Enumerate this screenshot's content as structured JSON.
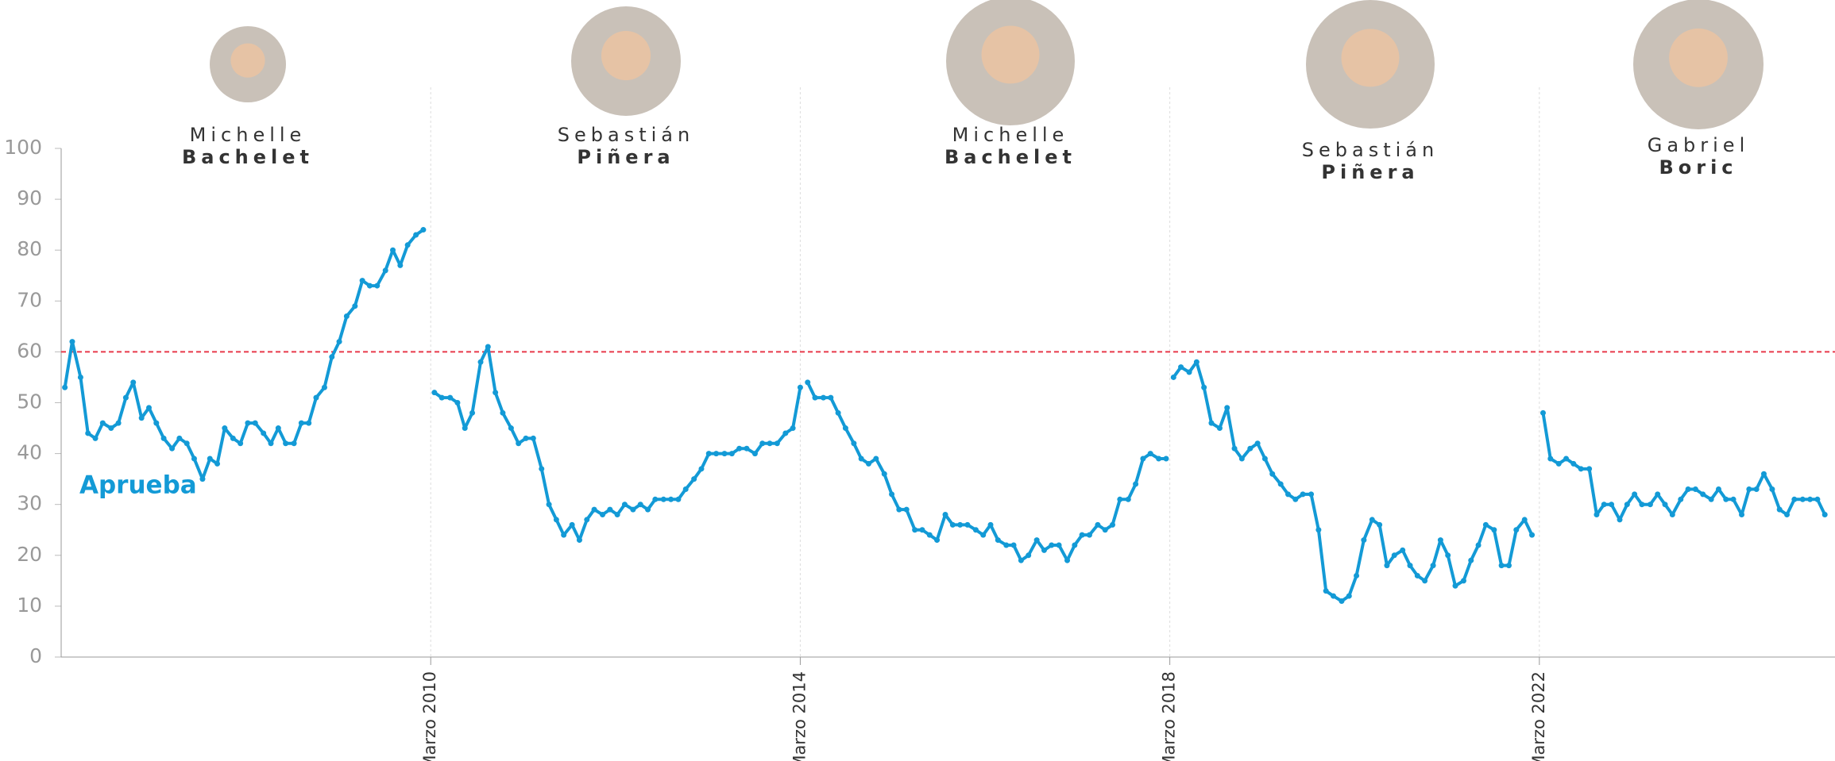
{
  "chart_data": {
    "type": "line",
    "presidents": [
      {
        "first": "Michelle",
        "last": "Bachelet"
      },
      {
        "first": "Sebastián",
        "last": "Piñera"
      },
      {
        "first": "Michelle",
        "last": "Bachelet"
      },
      {
        "first": "Sebastián",
        "last": "Piñera"
      },
      {
        "first": "Gabriel",
        "last": "Boric"
      }
    ],
    "xlim": [
      2006.17,
      2025.37
    ],
    "ylim": [
      0,
      100
    ],
    "yticks": [
      0,
      10,
      20,
      30,
      40,
      50,
      60,
      70,
      80,
      90,
      100
    ],
    "xticks": [
      {
        "value": 2010.17,
        "label": "Marzo 2010"
      },
      {
        "value": 2014.17,
        "label": "Marzo 2014"
      },
      {
        "value": 2018.17,
        "label": "Marzo 2018"
      },
      {
        "value": 2022.17,
        "label": "Marzo 2022"
      }
    ],
    "reference_line": {
      "value": 60,
      "color": "#e8394a"
    },
    "series": [
      {
        "name": "Aprueba",
        "color": "#139ad6",
        "x": [
          2006.21,
          2006.29,
          2006.38,
          2006.46,
          2006.54,
          2006.62,
          2006.71,
          2006.79,
          2006.87,
          2006.95,
          2007.04,
          2007.12,
          2007.2,
          2007.28,
          2007.37,
          2007.45,
          2007.53,
          2007.61,
          2007.7,
          2007.78,
          2007.86,
          2007.94,
          2008.03,
          2008.11,
          2008.19,
          2008.27,
          2008.36,
          2008.44,
          2008.52,
          2008.6,
          2008.69,
          2008.77,
          2008.85,
          2008.93,
          2009.02,
          2009.1,
          2009.18,
          2009.26,
          2009.35,
          2009.43,
          2009.51,
          2009.59,
          2009.68,
          2009.76,
          2009.84,
          2009.92,
          2010.01,
          2010.09,
          null,
          2010.21,
          2010.29,
          2010.38,
          2010.46,
          2010.54,
          2010.62,
          2010.71,
          2010.79,
          2010.87,
          2010.95,
          2011.04,
          2011.12,
          2011.2,
          2011.28,
          2011.37,
          2011.45,
          2011.53,
          2011.61,
          2011.7,
          2011.78,
          2011.86,
          2011.94,
          2012.03,
          2012.11,
          2012.19,
          2012.27,
          2012.36,
          2012.44,
          2012.52,
          2012.6,
          2012.69,
          2012.77,
          2012.85,
          2012.93,
          2013.02,
          2013.1,
          2013.18,
          2013.26,
          2013.35,
          2013.43,
          2013.51,
          2013.59,
          2013.68,
          2013.76,
          2013.84,
          2013.92,
          2014.01,
          2014.09,
          2014.17,
          null,
          2014.25,
          2014.33,
          2014.42,
          2014.5,
          2014.58,
          2014.66,
          2014.75,
          2014.83,
          2014.91,
          2014.99,
          2015.08,
          2015.16,
          2015.24,
          2015.32,
          2015.41,
          2015.49,
          2015.57,
          2015.65,
          2015.74,
          2015.82,
          2015.9,
          2015.98,
          2016.07,
          2016.15,
          2016.23,
          2016.31,
          2016.4,
          2016.48,
          2016.56,
          2016.64,
          2016.73,
          2016.81,
          2016.89,
          2016.97,
          2017.06,
          2017.14,
          2017.22,
          2017.3,
          2017.39,
          2017.47,
          2017.55,
          2017.63,
          2017.72,
          2017.8,
          2017.88,
          2017.96,
          2018.05,
          2018.13,
          null,
          2018.21,
          2018.29,
          2018.38,
          2018.46,
          2018.54,
          2018.62,
          2018.71,
          2018.79,
          2018.87,
          2018.95,
          2019.04,
          2019.12,
          2019.2,
          2019.28,
          2019.37,
          2019.45,
          2019.53,
          2019.61,
          2019.7,
          2019.78,
          2019.86,
          2019.94,
          2020.03,
          2020.11,
          2020.19,
          2020.27,
          2020.36,
          2020.44,
          2020.52,
          2020.6,
          2020.69,
          2020.77,
          2020.85,
          2020.93,
          2021.02,
          2021.1,
          2021.18,
          2021.26,
          2021.35,
          2021.43,
          2021.51,
          2021.59,
          2021.68,
          2021.76,
          2021.84,
          2021.92,
          2022.01,
          2022.09,
          null,
          2022.21,
          2022.29,
          2022.38,
          2022.46,
          2022.54,
          2022.62,
          2022.71,
          2022.79,
          2022.87,
          2022.95,
          2023.04,
          2023.12,
          2023.2,
          2023.28,
          2023.37,
          2023.45,
          2023.53,
          2023.61,
          2023.7,
          2023.78,
          2023.86,
          2023.94,
          2024.03,
          2024.11,
          2024.19,
          2024.27,
          2024.36,
          2024.44,
          2024.52,
          2024.6,
          2024.69,
          2024.77,
          2024.85,
          2024.93,
          2025.02,
          2025.1,
          2025.18,
          2025.26
        ],
        "values": [
          53,
          62,
          55,
          44,
          43,
          46,
          45,
          46,
          51,
          54,
          47,
          49,
          46,
          43,
          41,
          43,
          42,
          39,
          35,
          39,
          38,
          45,
          43,
          42,
          46,
          46,
          44,
          42,
          45,
          42,
          42,
          46,
          46,
          51,
          53,
          59,
          62,
          67,
          69,
          74,
          73,
          73,
          76,
          80,
          77,
          81,
          83,
          84,
          null,
          52,
          51,
          51,
          50,
          45,
          48,
          58,
          61,
          52,
          48,
          45,
          42,
          43,
          43,
          37,
          30,
          27,
          24,
          26,
          23,
          27,
          29,
          28,
          29,
          28,
          30,
          29,
          30,
          29,
          31,
          31,
          31,
          31,
          33,
          35,
          37,
          40,
          40,
          40,
          40,
          41,
          41,
          40,
          42,
          42,
          42,
          44,
          45,
          53,
          null,
          54,
          51,
          51,
          51,
          48,
          45,
          42,
          39,
          38,
          39,
          36,
          32,
          29,
          29,
          25,
          25,
          24,
          23,
          28,
          26,
          26,
          26,
          25,
          24,
          26,
          23,
          22,
          22,
          19,
          20,
          23,
          21,
          22,
          22,
          19,
          22,
          24,
          24,
          26,
          25,
          26,
          31,
          31,
          34,
          39,
          40,
          39,
          39,
          null,
          55,
          57,
          56,
          58,
          53,
          46,
          45,
          49,
          41,
          39,
          41,
          42,
          39,
          36,
          34,
          32,
          31,
          32,
          32,
          25,
          13,
          12,
          11,
          12,
          16,
          23,
          27,
          26,
          18,
          20,
          21,
          18,
          16,
          15,
          18,
          23,
          20,
          14,
          15,
          19,
          22,
          26,
          25,
          18,
          18,
          25,
          27,
          24,
          null,
          48,
          39,
          38,
          39,
          38,
          37,
          37,
          28,
          30,
          30,
          27,
          30,
          32,
          30,
          30,
          32,
          30,
          28,
          31,
          33,
          33,
          32,
          31,
          33,
          31,
          31,
          28,
          33,
          33,
          36,
          33,
          29,
          28,
          31,
          31,
          31,
          31,
          28
        ]
      }
    ]
  }
}
